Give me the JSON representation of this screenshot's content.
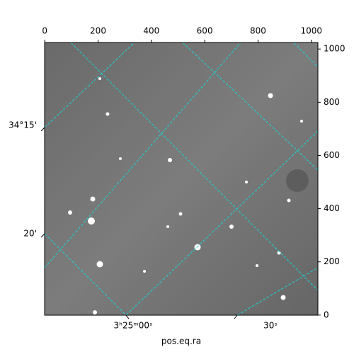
{
  "chart_data": {
    "type": "image",
    "xlabel": "pos.eq.ra",
    "xlim": [
      -0.5,
      1024.5
    ],
    "xticks": [
      0,
      200,
      400,
      600,
      800,
      1000
    ],
    "ylim": [
      -0.5,
      1024.5
    ],
    "yticks": [
      0,
      200,
      400,
      600,
      800,
      1000
    ],
    "ra_ticks": [
      "3ʰ25ᵐ00ˢ",
      "30ˢ"
    ],
    "dec_ticks": [
      "34°15'",
      "20'"
    ]
  }
}
